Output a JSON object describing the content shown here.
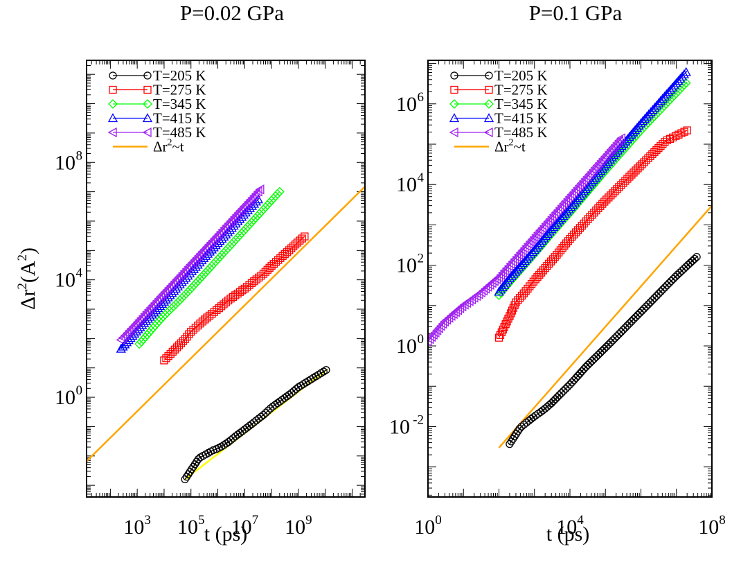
{
  "chart_data": [
    {
      "type": "line",
      "title": "P=0.02 GPa",
      "xlabel": "t (ps)",
      "ylabel": "Δr2(A2)",
      "xscale": "log",
      "yscale": "log",
      "xlim": [
        13.0,
        300000000000.0
      ],
      "ylim": [
        0.0004,
        300000000000.0
      ],
      "xticks": [
        {
          "value": 1000.0,
          "base": "10",
          "exp": "3"
        },
        {
          "value": 100000.0,
          "base": "10",
          "exp": "5"
        },
        {
          "value": 10000000.0,
          "base": "10",
          "exp": "7"
        },
        {
          "value": 1000000000.0,
          "base": "10",
          "exp": "9"
        }
      ],
      "yticks": [
        {
          "value": 1.0,
          "base": "10",
          "exp": "0"
        },
        {
          "value": 10000.0,
          "base": "10",
          "exp": "4"
        },
        {
          "value": 100000000.0,
          "base": "10",
          "exp": "8"
        }
      ],
      "legend_position": "top-left",
      "series": [
        {
          "name": "T=205 K",
          "color": "#000000",
          "marker": "circle",
          "x": [
            60000.0,
            200000.0,
            400000.0,
            600000.0,
            1000000.0,
            1500000.0,
            2500000.0,
            5000000.0,
            10000000.0,
            20000000.0,
            50000000.0,
            100000000.0,
            500000000.0,
            1000000000.0,
            5000000000.0,
            12000000000.0
          ],
          "y": [
            0.0016,
            0.0085,
            0.012,
            0.015,
            0.018,
            0.022,
            0.03,
            0.05,
            0.08,
            0.13,
            0.25,
            0.45,
            1.3,
            2.2,
            5.5,
            9.0
          ]
        },
        {
          "name": "T=275 K",
          "color": "#ff0000",
          "marker": "square",
          "x": [
            10000.0,
            30000.0,
            60000.0,
            100000.0,
            200000.0,
            400000.0,
            1000000.0,
            3000000.0,
            10000000.0,
            50000000.0,
            100000000.0,
            500000000.0,
            1000000000.0,
            1700000000.0
          ],
          "y": [
            18,
            50,
            95,
            170,
            300,
            520,
            1000,
            2300,
            5000,
            16000,
            30000,
            110000,
            200000,
            300000
          ]
        },
        {
          "name": "T=345 K",
          "color": "#00ff00",
          "marker": "diamond",
          "x": [
            1200.0,
            5000.0,
            10000.0,
            30000.0,
            100000.0,
            500000.0,
            2000000.0,
            10000000.0,
            50000000.0,
            200000000.0
          ],
          "y": [
            65,
            300,
            600,
            1600,
            5000,
            25000,
            100000,
            500000,
            2500000,
            10000000
          ]
        },
        {
          "name": "T=415 K",
          "color": "#0000ff",
          "marker": "triangle-up",
          "x": [
            250.0,
            1000.0,
            3000.0,
            10000.0,
            50000.0,
            300000.0,
            2000000.0,
            10000000.0,
            35000000.0
          ],
          "y": [
            45,
            190,
            550,
            1800,
            9000,
            55000,
            350000,
            1800000,
            6000000
          ]
        },
        {
          "name": "T=485 K",
          "color": "#a020f0",
          "marker": "triangle-left",
          "x": [
            250.0,
            800.0,
            3000.0,
            10000.0,
            50000.0,
            300000.0,
            2000000.0,
            10000000.0,
            38000000.0
          ],
          "y": [
            90,
            280,
            1050,
            3500,
            17000,
            100000,
            650000,
            3200000,
            12000000
          ]
        },
        {
          "name": "Δr2~t",
          "color": "#ffa500",
          "marker": "none",
          "x": [
            13.0,
            300000000000.0
          ],
          "y": [
            0.0066,
            15000000.0
          ]
        },
        {
          "name": "",
          "color": "#ffff00",
          "marker": "none",
          "x": [
            60000.0,
            12000000000.0
          ],
          "y": [
            0.0016,
            9.0
          ]
        }
      ]
    },
    {
      "type": "line",
      "title": "P=0.1 GPa",
      "xlabel": "t (ps)",
      "ylabel": "",
      "xscale": "log",
      "yscale": "log",
      "xlim": [
        1.0,
        100000000.0
      ],
      "ylim": [
        0.00018,
        12000000.0
      ],
      "xticks": [
        {
          "value": 1.0,
          "base": "10",
          "exp": "0"
        },
        {
          "value": 10000.0,
          "base": "10",
          "exp": "4"
        },
        {
          "value": 100000000.0,
          "base": "10",
          "exp": "8"
        }
      ],
      "yticks": [
        {
          "value": 0.01,
          "base": "10",
          "exp": "-2"
        },
        {
          "value": 1.0,
          "base": "10",
          "exp": "0"
        },
        {
          "value": 100.0,
          "base": "10",
          "exp": "2"
        },
        {
          "value": 10000.0,
          "base": "10",
          "exp": "4"
        },
        {
          "value": 1000000.0,
          "base": "10",
          "exp": "6"
        }
      ],
      "legend_position": "top-left",
      "series": [
        {
          "name": "T=205 K",
          "color": "#000000",
          "marker": "circle",
          "x": [
            200.0,
            400.0,
            700.0,
            1000.0,
            1500.0,
            2000.0,
            3000.0,
            5000.0,
            10000.0,
            30000.0,
            100000.0,
            1000000.0,
            10000000.0,
            40000000.0
          ],
          "y": [
            0.0037,
            0.0095,
            0.014,
            0.018,
            0.023,
            0.028,
            0.038,
            0.06,
            0.11,
            0.32,
            0.9,
            7,
            55,
            170
          ]
        },
        {
          "name": "T=275 K",
          "color": "#ff0000",
          "marker": "square",
          "x": [
            100.0,
            200.0,
            300.0,
            500.0,
            1000.0,
            2000.0,
            4000.0,
            10000.0,
            30000.0,
            100000.0,
            1000000.0,
            5000000.0,
            20000000.0
          ],
          "y": [
            1.6,
            5.5,
            12,
            20,
            42,
            85,
            170,
            450,
            1300,
            4000,
            30000,
            120000,
            220000
          ]
        },
        {
          "name": "T=345 K",
          "color": "#00ff00",
          "marker": "diamond",
          "x": [
            100.0,
            200.0,
            500.0,
            1000.0,
            3000.0,
            10000.0,
            100000.0,
            1000000.0,
            20000000.0
          ],
          "y": [
            18,
            38,
            95,
            190,
            600,
            2000,
            22000,
            220000,
            3500000
          ]
        },
        {
          "name": "T=415 K",
          "color": "#0000ff",
          "marker": "triangle-up",
          "x": [
            100.0,
            200.0,
            500.0,
            1000.0,
            3000.0,
            10000.0,
            100000.0,
            1000000.0,
            20000000.0
          ],
          "y": [
            22,
            48,
            120,
            240,
            780,
            2600,
            30000,
            330000,
            6500000
          ]
        },
        {
          "name": "T=485 K",
          "color": "#a020f0",
          "marker": "triangle-left",
          "x": [
            1.0,
            3.0,
            10.0,
            30.0,
            100.0,
            300.0,
            1000.0,
            10000.0,
            100000.0,
            300000.0
          ],
          "y": [
            1.3,
            4.0,
            10,
            20,
            50,
            150,
            500,
            5000,
            50000,
            150000
          ]
        },
        {
          "name": "Δr2~t",
          "color": "#ffa500",
          "marker": "none",
          "x": [
            100.0,
            100000000.0
          ],
          "y": [
            0.003,
            3000
          ]
        }
      ]
    }
  ]
}
